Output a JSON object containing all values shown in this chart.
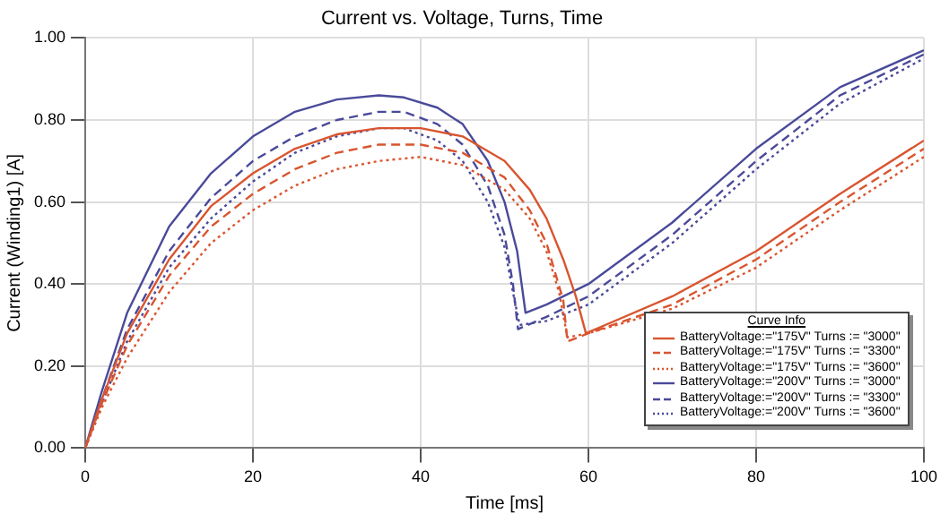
{
  "chart_data": {
    "type": "line",
    "title": "Current vs. Voltage, Turns, Time",
    "xlabel": "Time [ms]",
    "ylabel": "Current (Winding1) [A]",
    "legend_title": "Curve Info",
    "xlim": [
      0,
      100
    ],
    "xticks": [
      0,
      20,
      40,
      60,
      80,
      100
    ],
    "ylim": [
      0,
      1
    ],
    "yticks": [
      {
        "value": 0,
        "label": "0.00"
      },
      {
        "value": 0.2,
        "label": "0.20"
      },
      {
        "value": 0.4,
        "label": "0.40"
      },
      {
        "value": 0.6,
        "label": "0.60"
      },
      {
        "value": 0.8,
        "label": "0.80"
      },
      {
        "value": 1,
        "label": "1.00"
      }
    ],
    "grid": true,
    "legend": "bottom right",
    "marker": "none",
    "series": [
      {
        "name": "BatteryVoltage:=\"175V\" Turns := \"3000\"",
        "color": "#d9552f",
        "line_style": "solid",
        "x": [
          0,
          2,
          5,
          10,
          15,
          20,
          25,
          30,
          35,
          40,
          45,
          50,
          53,
          55,
          57,
          58.5,
          59.7,
          62,
          70,
          80,
          90,
          100
        ],
        "values": [
          0,
          0.12,
          0.28,
          0.46,
          0.59,
          0.67,
          0.73,
          0.765,
          0.78,
          0.78,
          0.76,
          0.7,
          0.63,
          0.56,
          0.46,
          0.37,
          0.28,
          0.3,
          0.37,
          0.48,
          0.62,
          0.75
        ]
      },
      {
        "name": "BatteryVoltage:=\"175V\" Turns := \"3300\"",
        "color": "#d9552f",
        "line_style": "dashed",
        "x": [
          0,
          2,
          5,
          10,
          15,
          20,
          25,
          30,
          35,
          40,
          45,
          50,
          53,
          55,
          57,
          57.5,
          60,
          70,
          80,
          90,
          100
        ],
        "values": [
          0,
          0.11,
          0.25,
          0.42,
          0.54,
          0.62,
          0.68,
          0.72,
          0.74,
          0.74,
          0.72,
          0.66,
          0.58,
          0.5,
          0.36,
          0.26,
          0.28,
          0.35,
          0.46,
          0.6,
          0.73
        ]
      },
      {
        "name": "BatteryVoltage:=\"175V\" Turns := \"3600\"",
        "color": "#d9552f",
        "line_style": "dotted",
        "x": [
          0,
          2,
          5,
          10,
          15,
          20,
          25,
          30,
          35,
          40,
          45,
          50,
          53,
          55,
          56.5,
          57.5,
          60,
          70,
          80,
          90,
          100
        ],
        "values": [
          0,
          0.1,
          0.22,
          0.38,
          0.5,
          0.58,
          0.64,
          0.68,
          0.7,
          0.71,
          0.69,
          0.63,
          0.56,
          0.48,
          0.38,
          0.27,
          0.28,
          0.34,
          0.44,
          0.58,
          0.71
        ]
      },
      {
        "name": "BatteryVoltage:=\"200V\" Turns := \"3000\"",
        "color": "#4a4a9a",
        "line_style": "solid",
        "x": [
          0,
          2,
          5,
          10,
          15,
          20,
          25,
          30,
          35,
          38,
          42,
          45,
          48,
          50,
          51.5,
          52.5,
          55,
          60,
          70,
          80,
          90,
          100
        ],
        "values": [
          0,
          0.14,
          0.33,
          0.54,
          0.67,
          0.76,
          0.82,
          0.85,
          0.86,
          0.855,
          0.83,
          0.79,
          0.7,
          0.6,
          0.48,
          0.33,
          0.35,
          0.4,
          0.55,
          0.73,
          0.88,
          0.97
        ]
      },
      {
        "name": "BatteryVoltage:=\"200V\" Turns := \"3300\"",
        "color": "#4a4a9a",
        "line_style": "dashed",
        "x": [
          0,
          2,
          5,
          10,
          15,
          20,
          25,
          30,
          35,
          38,
          42,
          45,
          48,
          50,
          51,
          51.6,
          55,
          60,
          70,
          80,
          90,
          100
        ],
        "values": [
          0,
          0.12,
          0.29,
          0.48,
          0.61,
          0.7,
          0.76,
          0.8,
          0.82,
          0.82,
          0.79,
          0.74,
          0.64,
          0.52,
          0.4,
          0.29,
          0.32,
          0.37,
          0.52,
          0.7,
          0.86,
          0.96
        ]
      },
      {
        "name": "BatteryVoltage:=\"200V\" Turns := \"3600\"",
        "color": "#4a4a9a",
        "line_style": "dotted",
        "x": [
          0,
          2,
          5,
          10,
          15,
          20,
          25,
          30,
          35,
          38,
          42,
          45,
          48,
          50,
          51,
          51.8,
          55,
          60,
          70,
          80,
          90,
          100
        ],
        "values": [
          0,
          0.11,
          0.26,
          0.44,
          0.56,
          0.65,
          0.72,
          0.76,
          0.78,
          0.78,
          0.75,
          0.7,
          0.6,
          0.49,
          0.38,
          0.3,
          0.31,
          0.35,
          0.5,
          0.68,
          0.84,
          0.95
        ]
      }
    ]
  }
}
